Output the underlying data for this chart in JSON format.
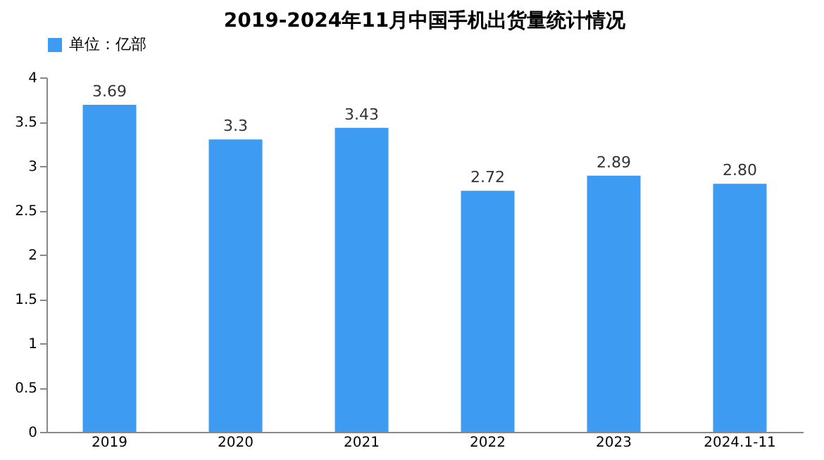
{
  "chart_data": {
    "type": "bar",
    "title": "2019-2024年11月中国手机出货量统计情况",
    "categories": [
      "2019",
      "2020",
      "2021",
      "2022",
      "2023",
      "2024.1-11"
    ],
    "series": [
      {
        "name": "单位：亿部",
        "color": "#3d9cf2",
        "values": [
          3.69,
          3.3,
          3.43,
          2.72,
          2.89,
          2.8
        ],
        "value_labels": [
          "3.69",
          "3.3",
          "3.43",
          "2.72",
          "2.89",
          "2.80"
        ]
      }
    ],
    "ylim": [
      0,
      4
    ],
    "yticks": [
      0,
      0.5,
      1,
      1.5,
      2,
      2.5,
      3,
      3.5,
      4
    ],
    "grid": false,
    "legend": "top"
  }
}
